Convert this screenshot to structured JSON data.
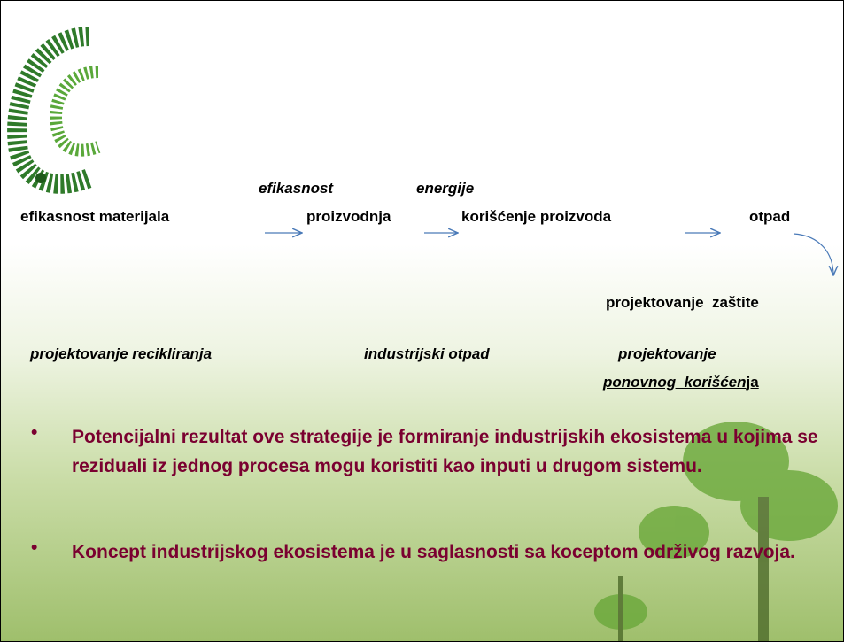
{
  "flow": {
    "above": [
      "efikasnost",
      "energije"
    ],
    "steps": [
      "efikasnost materijala",
      "proizvodnja",
      "korišćenje proizvoda",
      "otpad"
    ],
    "next": "projektovanje  zaštite"
  },
  "design": {
    "items": [
      "projektovanje recikliranja",
      "industrijski otpad",
      "projektovanje"
    ],
    "reuse_underlined": "ponovnog  korišćen",
    "reuse_rest": "ja"
  },
  "bullets": [
    "Potencijalni rezultat ove strategije je formiranje industrijskih ekosistema u kojima se reziduali iz jednog procesa mogu koristiti kao inputi u drugom sistemu.",
    "Koncept industrijskog ekosistema je u saglasnosti sa koceptom održivog razvoja."
  ]
}
